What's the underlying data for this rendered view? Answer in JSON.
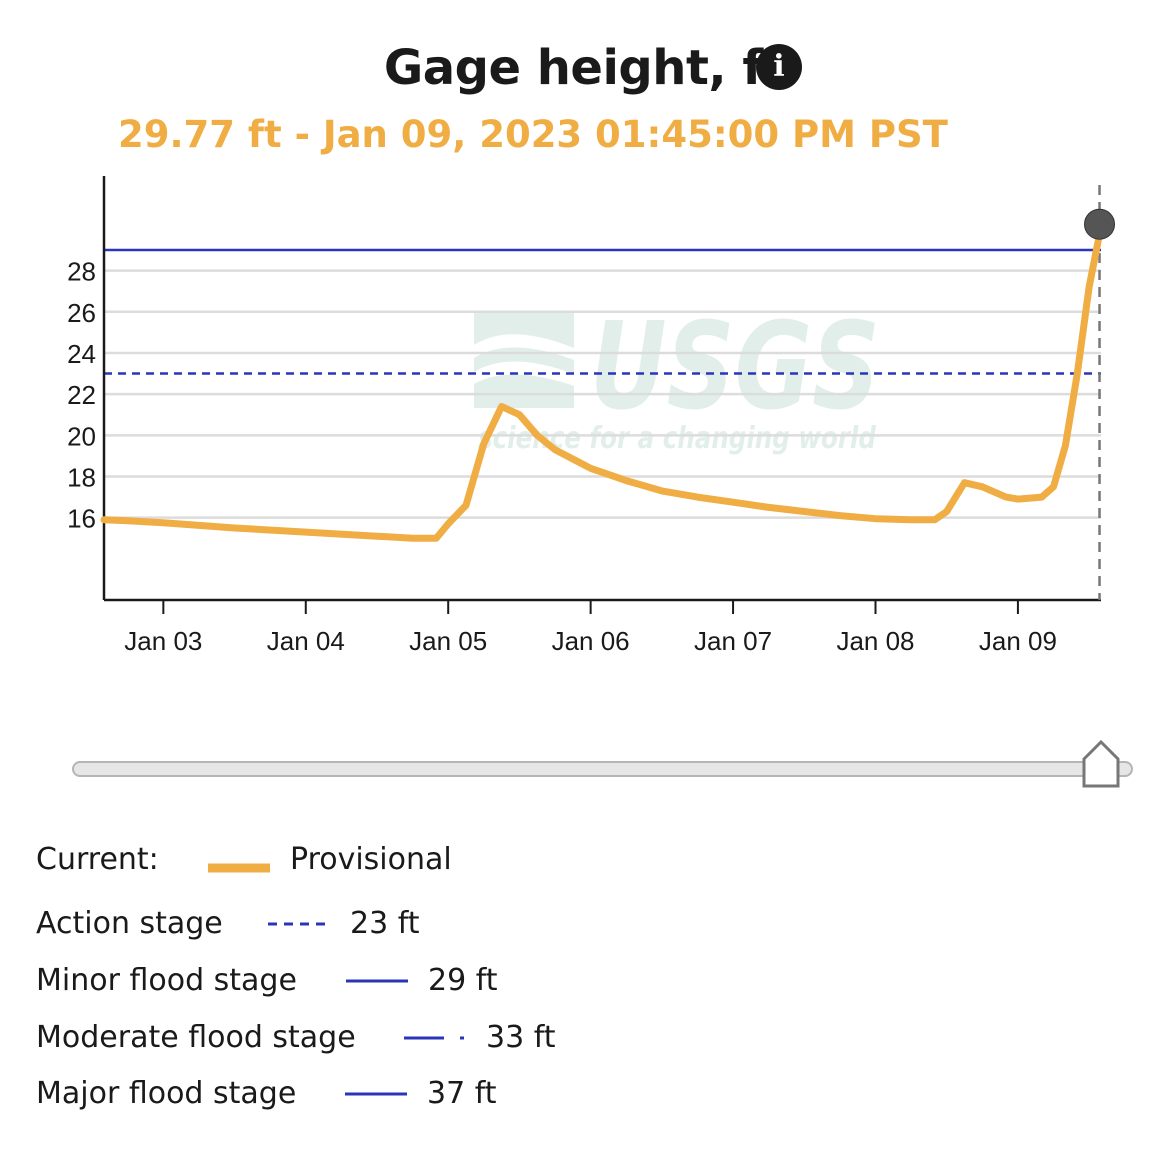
{
  "header": {
    "title": "Gage height, ft",
    "info_icon": "info-icon",
    "current_reading": "29.77 ft - Jan 09, 2023 01:45:00 PM PST"
  },
  "watermark": {
    "logo_text": "USGS",
    "tagline": "science for a changing world"
  },
  "colors": {
    "provisional": "#f0ad44",
    "flood_stage": "#2b35b8",
    "grid": "#dcdcdc",
    "axis": "#1a1a1a",
    "marker": "#555555"
  },
  "chart_data": {
    "type": "line",
    "title": "Gage height, ft",
    "xlabel": "",
    "ylabel": "",
    "x_ticks": [
      "Jan 03",
      "Jan 04",
      "Jan 05",
      "Jan 06",
      "Jan 07",
      "Jan 08",
      "Jan 09"
    ],
    "xlim": [
      "2023-01-02 14:00",
      "2023-01-09 14:00"
    ],
    "y_ticks": [
      16,
      18,
      20,
      22,
      24,
      26,
      28
    ],
    "ylim": [
      12,
      32.5
    ],
    "grid": true,
    "series": [
      {
        "name": "Provisional",
        "style": "solid",
        "x": [
          "2023-01-02 14:00",
          "2023-01-02 18:00",
          "2023-01-03 00:00",
          "2023-01-03 12:00",
          "2023-01-04 00:00",
          "2023-01-04 12:00",
          "2023-01-04 18:00",
          "2023-01-04 22:00",
          "2023-01-05 00:00",
          "2023-01-05 03:00",
          "2023-01-05 06:00",
          "2023-01-05 09:00",
          "2023-01-05 12:00",
          "2023-01-05 15:00",
          "2023-01-05 18:00",
          "2023-01-05 22:00",
          "2023-01-06 00:00",
          "2023-01-06 06:00",
          "2023-01-06 12:00",
          "2023-01-06 18:00",
          "2023-01-07 00:00",
          "2023-01-07 06:00",
          "2023-01-07 12:00",
          "2023-01-07 18:00",
          "2023-01-08 00:00",
          "2023-01-08 06:00",
          "2023-01-08 10:00",
          "2023-01-08 12:00",
          "2023-01-08 15:00",
          "2023-01-08 18:00",
          "2023-01-08 22:00",
          "2023-01-09 00:00",
          "2023-01-09 04:00",
          "2023-01-09 06:00",
          "2023-01-09 08:00",
          "2023-01-09 10:00",
          "2023-01-09 12:00",
          "2023-01-09 13:45"
        ],
        "values": [
          15.9,
          15.85,
          15.75,
          15.5,
          15.3,
          15.1,
          15.0,
          15.0,
          15.7,
          16.6,
          19.6,
          21.4,
          21.0,
          20.0,
          19.3,
          18.7,
          18.4,
          17.8,
          17.3,
          17.0,
          16.75,
          16.5,
          16.3,
          16.1,
          15.95,
          15.9,
          15.9,
          16.3,
          17.7,
          17.5,
          17.0,
          16.9,
          17.0,
          17.5,
          19.5,
          23.0,
          27.2,
          29.77
        ]
      },
      {
        "name": "Action stage",
        "style": "dashed",
        "value": 23
      },
      {
        "name": "Minor flood stage",
        "style": "solid",
        "value": 29
      }
    ],
    "current_marker": {
      "x": "2023-01-09 13:45",
      "value": 29.77
    }
  },
  "range_slider": {
    "handle_icon": "pentagon-handle-icon",
    "position_fraction": 1.0
  },
  "legend": {
    "current_label": "Current:",
    "current_series": "Provisional",
    "stages": [
      {
        "label": "Action stage",
        "value": "23 ft",
        "line_style": "dashed"
      },
      {
        "label": "Minor flood stage",
        "value": "29 ft",
        "line_style": "solid"
      },
      {
        "label": "Moderate flood stage",
        "value": "33 ft",
        "line_style": "dash-dot"
      },
      {
        "label": "Major flood stage",
        "value": "37 ft",
        "line_style": "solid"
      }
    ]
  }
}
